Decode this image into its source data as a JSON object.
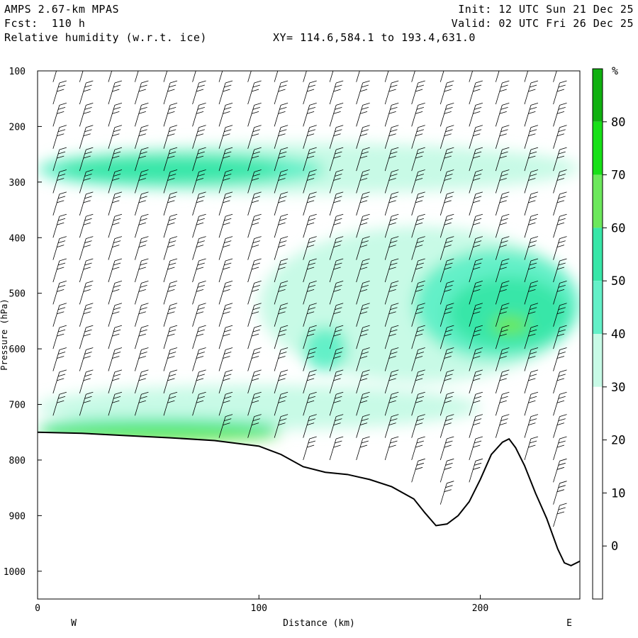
{
  "header": {
    "model": "AMPS 2.67-km MPAS",
    "forecast": "Fcst:  110 h",
    "field": "Relative humidity (w.r.t. ice)",
    "xy_range": "XY= 114.6,584.1 to 193.4,631.0",
    "init": "Init: 12 UTC Sun 21 Dec 25",
    "valid": "Valid: 02 UTC Fri 26 Dec 25"
  },
  "chart_data": {
    "type": "heatmap",
    "xlabel": "Distance (km)",
    "ylabel": "Pressure (hPa)",
    "xlim": [
      0,
      245
    ],
    "ylim": [
      100,
      1050
    ],
    "y_scale": "linear-inverted",
    "x_ticks": [
      0,
      100,
      200
    ],
    "y_ticks": [
      100,
      200,
      300,
      400,
      500,
      600,
      700,
      800,
      900,
      1000
    ],
    "direction_labels": {
      "west": "W",
      "east": "E"
    },
    "colorbar": {
      "unit": "%",
      "labels": [
        80,
        70,
        60,
        50,
        40,
        30,
        20,
        10,
        0
      ],
      "bands": [
        {
          "from": 0,
          "to": 10,
          "color": "#ffffff"
        },
        {
          "from": 10,
          "to": 20,
          "color": "#ffffff"
        },
        {
          "from": 20,
          "to": 30,
          "color": "#ffffff"
        },
        {
          "from": 30,
          "to": 40,
          "color": "#ffffff"
        },
        {
          "from": 40,
          "to": 50,
          "color": "#c8fae6"
        },
        {
          "from": 50,
          "to": 60,
          "color": "#64f0c8"
        },
        {
          "from": 60,
          "to": 70,
          "color": "#38e6a8"
        },
        {
          "from": 70,
          "to": 80,
          "color": "#6ce85c"
        },
        {
          "from": 80,
          "to": 90,
          "color": "#18e018"
        },
        {
          "from": 90,
          "to": 100,
          "color": "#10b010"
        }
      ]
    },
    "terrain": {
      "x": [
        0,
        20,
        40,
        60,
        80,
        100,
        110,
        120,
        130,
        140,
        150,
        160,
        170,
        175,
        180,
        185,
        190,
        195,
        200,
        205,
        210,
        213,
        216,
        220,
        225,
        230,
        235,
        238,
        241,
        245
      ],
      "p": [
        750,
        752,
        756,
        760,
        765,
        775,
        790,
        812,
        822,
        826,
        835,
        848,
        870,
        895,
        918,
        915,
        900,
        875,
        835,
        790,
        768,
        762,
        778,
        810,
        860,
        905,
        960,
        985,
        990,
        982
      ]
    },
    "humidity_layers": [
      {
        "level": 40,
        "x0": 0,
        "x1": 245,
        "p_top": 230,
        "p_bot": 320
      },
      {
        "level": 50,
        "x0": 0,
        "x1": 130,
        "p_top": 245,
        "p_bot": 310
      },
      {
        "level": 60,
        "x0": 10,
        "x1": 110,
        "p_top": 255,
        "p_bot": 300
      },
      {
        "level": 40,
        "x0": 100,
        "x1": 245,
        "p_top": 380,
        "p_bot": 660
      },
      {
        "level": 50,
        "x0": 170,
        "x1": 245,
        "p_top": 420,
        "p_bot": 620
      },
      {
        "level": 60,
        "x0": 185,
        "x1": 240,
        "p_top": 470,
        "p_bot": 600
      },
      {
        "level": 70,
        "x0": 205,
        "x1": 222,
        "p_top": 540,
        "p_bot": 575
      },
      {
        "level": 50,
        "x0": 120,
        "x1": 140,
        "p_top": 560,
        "p_bot": 640
      },
      {
        "level": 40,
        "x0": 0,
        "x1": 200,
        "p_top": 665,
        "p_bot": 745
      },
      {
        "level": 60,
        "x0": 0,
        "x1": 110,
        "p_top": 725,
        "p_bot": 755
      },
      {
        "level": 70,
        "x0": 0,
        "x1": 110,
        "p_top": 740,
        "p_bot": 768
      }
    ],
    "wind_barb_columns_km": [
      7,
      19,
      32,
      44,
      57,
      70,
      82,
      95,
      107,
      120,
      132,
      144,
      157,
      169,
      182,
      195,
      207,
      220,
      233
    ],
    "wind_barb_levels_hpa": [
      120,
      160,
      200,
      240,
      280,
      320,
      360,
      400,
      440,
      480,
      520,
      560,
      600,
      640,
      680,
      720,
      760,
      800,
      840,
      880,
      920
    ]
  }
}
